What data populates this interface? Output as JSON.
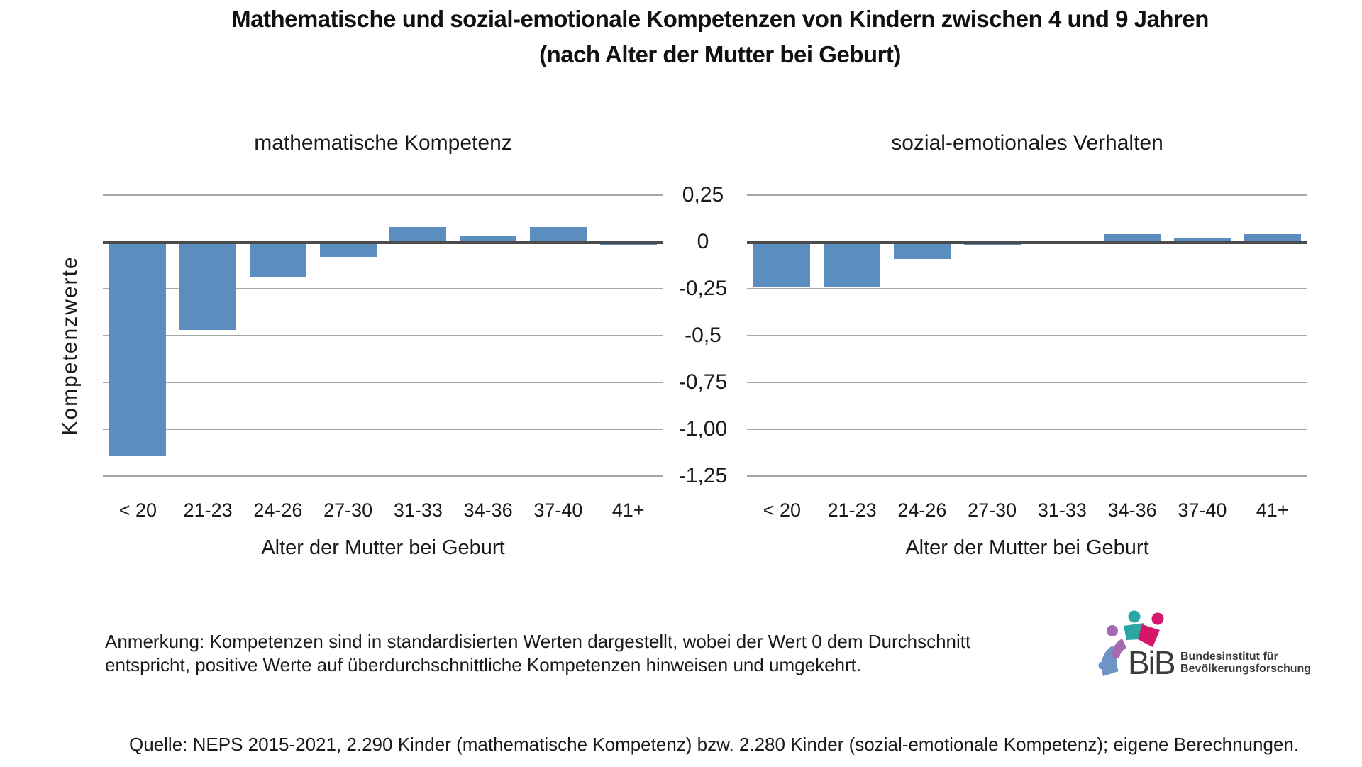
{
  "figure": {
    "title_lines": [
      "Mathematische und sozial-emotionale Kompetenzen von Kindern zwischen 4 und 9 Jahren",
      "(nach Alter der Mutter bei Geburt)"
    ]
  },
  "y_axis": {
    "label": "Kompetenzwerte",
    "ticks": [
      {
        "label": "0,25",
        "value": 0.25
      },
      {
        "label": "0",
        "value": 0
      },
      {
        "label": "-0,25",
        "value": -0.25
      },
      {
        "label": "-0,5",
        "value": -0.5
      },
      {
        "label": "-0,75",
        "value": -0.75
      },
      {
        "label": "-1,00",
        "value": -1.0
      },
      {
        "label": "-1,25",
        "value": -1.25
      }
    ]
  },
  "chart_data": [
    {
      "type": "bar",
      "title": "mathematische Kompetenz",
      "categories": [
        "< 20",
        "21-23",
        "24-26",
        "27-30",
        "31-33",
        "34-36",
        "37-40",
        "41+"
      ],
      "values": [
        -1.14,
        -0.47,
        -0.19,
        -0.08,
        0.08,
        0.03,
        0.08,
        -0.02
      ],
      "xlabel": "Alter der Mutter bei Geburt",
      "ylabel": "Kompetenzwerte",
      "ylim": [
        -1.25,
        0.25
      ],
      "grid": true,
      "legend": false,
      "bar_color": "#5b8dbe"
    },
    {
      "type": "bar",
      "title": "sozial-emotionales Verhalten",
      "categories": [
        "< 20",
        "21-23",
        "24-26",
        "27-30",
        "31-33",
        "34-36",
        "37-40",
        "41+"
      ],
      "values": [
        -0.24,
        -0.24,
        -0.09,
        -0.02,
        -0.01,
        0.04,
        0.02,
        0.04
      ],
      "xlabel": "Alter der Mutter bei Geburt",
      "ylabel": "",
      "ylim": [
        -1.25,
        0.25
      ],
      "grid": true,
      "legend": false,
      "bar_color": "#5b8dbe"
    }
  ],
  "note": {
    "lines": [
      "Anmerkung: Kompetenzen sind in standardisierten Werten dargestellt, wobei der Wert 0 dem Durchschnitt",
      "entspricht, positive Werte auf überdurchschnittliche Kompetenzen hinweisen und umgekehrt."
    ]
  },
  "source": {
    "text": "Quelle: NEPS 2015-2021, 2.290 Kinder (mathematische Kompetenz) bzw. 2.280 Kinder (sozial-emotionale Kompetenz); eigene Berechnungen."
  },
  "logo": {
    "abbr": "BiB",
    "org_lines": [
      "Bundesinstitut für",
      "Bevölkerungsforschung"
    ],
    "colors": {
      "teal": "#2ba7a3",
      "magenta": "#d4176b",
      "purple": "#a667b3",
      "blue": "#6e94c6",
      "text": "#3b3b3a"
    }
  },
  "colors": {
    "bar": "#5b8dbe",
    "gridline": "#a6a6a6",
    "zero_line": "#4b4b4b",
    "background": "#ffffff",
    "text": "#1a1a1a"
  }
}
